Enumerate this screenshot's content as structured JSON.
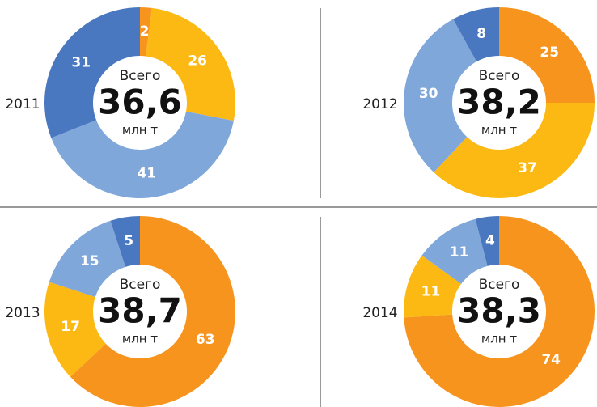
{
  "chart_data": [
    {
      "type": "donut",
      "label": "2011",
      "center_top": "Всего",
      "center_value": "36,6",
      "center_unit": "млн т",
      "values": [
        2,
        26,
        41,
        31
      ],
      "colors": [
        "#f7941d",
        "#fdb913",
        "#7fa7d9",
        "#4a78c0"
      ]
    },
    {
      "type": "donut",
      "label": "2012",
      "center_top": "Всего",
      "center_value": "38,2",
      "center_unit": "млн т",
      "values": [
        25,
        37,
        30,
        8
      ],
      "colors": [
        "#f7941d",
        "#fdb913",
        "#7fa7d9",
        "#4a78c0"
      ]
    },
    {
      "type": "donut",
      "label": "2013",
      "center_top": "Всего",
      "center_value": "38,7",
      "center_unit": "млн т",
      "values": [
        63,
        17,
        15,
        5
      ],
      "colors": [
        "#f7941d",
        "#fdb913",
        "#7fa7d9",
        "#4a78c0"
      ]
    },
    {
      "type": "donut",
      "label": "2014",
      "center_top": "Всего",
      "center_value": "38,3",
      "center_unit": "млн т",
      "values": [
        74,
        11,
        11,
        4
      ],
      "colors": [
        "#f7941d",
        "#fdb913",
        "#7fa7d9",
        "#4a78c0"
      ]
    }
  ]
}
